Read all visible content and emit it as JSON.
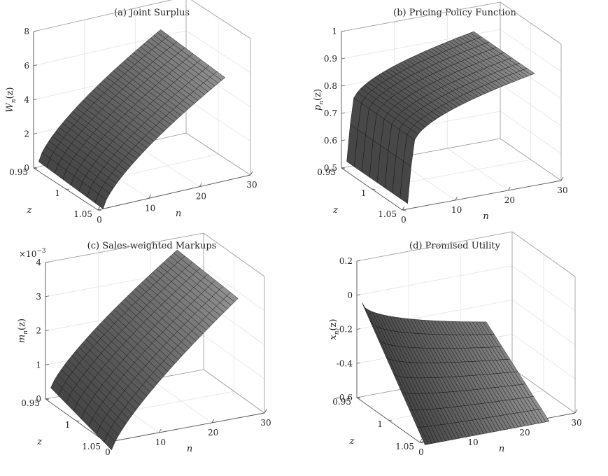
{
  "chart_data": [
    {
      "type": "surface",
      "title": "(a) Joint Surplus",
      "xlabel": "n",
      "ylabel": "z",
      "zlabel": "W",
      "zlabel_sub": "n",
      "zlabel_arg": "(z)",
      "xlim": [
        0,
        30
      ],
      "ylim": [
        0.95,
        1.05
      ],
      "zlim": [
        0,
        8
      ],
      "xticks": [
        "0",
        "10",
        "20",
        "30"
      ],
      "yticks": [
        "0.95",
        "1",
        "1.05"
      ],
      "zticks": [
        "0",
        "2",
        "4",
        "6",
        "8"
      ],
      "zscale": "",
      "n_range": [
        1,
        25
      ],
      "z_range": [
        0.95,
        1.05
      ],
      "edge_n1": [
        0.3,
        0.0
      ],
      "edge_n25": [
        6.4,
        6.05
      ],
      "curve_exponent": 0.7,
      "mesh_n": 36,
      "mesh_z": 8,
      "grid": true
    },
    {
      "type": "surface",
      "title": "(b) Pricing Policy Function",
      "xlabel": "n",
      "ylabel": "z",
      "zlabel": "p",
      "zlabel_sub": "n",
      "zlabel_arg": "(z)",
      "xlim": [
        0,
        30
      ],
      "ylim": [
        0.95,
        1.05
      ],
      "zlim": [
        0.5,
        1
      ],
      "xticks": [
        "0",
        "10",
        "20",
        "30"
      ],
      "yticks": [
        "0.95",
        "1",
        "1.05"
      ],
      "zticks": [
        "0.5",
        "0.6",
        "0.7",
        "0.8",
        "0.9",
        "1"
      ],
      "zscale": "",
      "n_range": [
        1,
        25
      ],
      "z_range": [
        0.95,
        1.05
      ],
      "edge_n1": [
        0.52,
        0.52
      ],
      "edge_n2": [
        0.72,
        0.72
      ],
      "edge_n25": [
        0.91,
        0.91
      ],
      "curve_exponent": 0.45,
      "mesh_n": 36,
      "mesh_z": 8,
      "grid": true
    },
    {
      "type": "surface",
      "title": "(c) Sales-weighted Markups",
      "xlabel": "n",
      "ylabel": "z",
      "zlabel": "m",
      "zlabel_sub": "n",
      "zlabel_arg": "(z)",
      "xlim": [
        0,
        30
      ],
      "ylim": [
        0.95,
        1.05
      ],
      "zlim": [
        0,
        4
      ],
      "xticks": [
        "0",
        "10",
        "20",
        "30"
      ],
      "yticks": [
        "0.95",
        "1",
        "1.05"
      ],
      "zticks": [
        "0",
        "1",
        "2",
        "3",
        "4"
      ],
      "zscale": "×10",
      "zscale_exp": "−3",
      "n_range": [
        1,
        25
      ],
      "z_range": [
        0.95,
        1.05
      ],
      "edge_n1": [
        0.3,
        -0.25
      ],
      "edge_n25": [
        3.65,
        3.5
      ],
      "curve_exponent": 0.78,
      "mesh_n": 36,
      "mesh_z": 8,
      "grid": true
    },
    {
      "type": "surface",
      "title": "(d) Promised Utility",
      "xlabel": "n",
      "ylabel": "z",
      "zlabel": "x",
      "zlabel_sub": "n",
      "zlabel_arg": "(z)",
      "xlim": [
        0,
        30
      ],
      "ylim": [
        0.95,
        1.05
      ],
      "zlim": [
        -0.6,
        0.2
      ],
      "xticks": [
        "0",
        "10",
        "20",
        "30"
      ],
      "yticks": [
        "0.95",
        "1",
        "1.05"
      ],
      "zticks": [
        "-0.6",
        "-0.4",
        "-0.2",
        "0",
        "0.2"
      ],
      "zscale": "",
      "n_range": [
        1,
        25
      ],
      "z_range": [
        0.95,
        1.05
      ],
      "edge_n1_z95": -0.05,
      "edge_n1_z105": -0.62,
      "edge_n25_z95": -0.3,
      "edge_n25_z105": -0.62,
      "curve_exponent": 0.55,
      "mesh_n": 36,
      "mesh_z": 8,
      "grid": true
    }
  ]
}
